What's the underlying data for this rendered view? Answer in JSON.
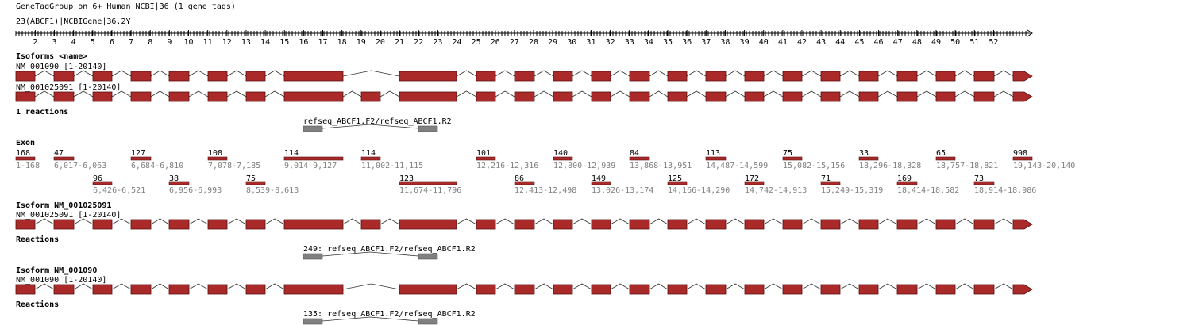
{
  "header": {
    "title_link": "Gene",
    "title_rest": "TagGroup on 6+ Human|NCBI|36 (1 gene tags)",
    "subtitle_link": "23(ABCF1)",
    "subtitle_rest": "|NCBIGene|36.2",
    "subtitle_mark": "Y"
  },
  "ruler": {
    "tick_labels": [
      "2",
      "3",
      "4",
      "5",
      "6",
      "7",
      "8",
      "9",
      "10",
      "11",
      "12",
      "13",
      "14",
      "15",
      "16",
      "17",
      "18",
      "19",
      "20",
      "21",
      "22",
      "23",
      "24",
      "25",
      "26",
      "27",
      "28",
      "29",
      "30",
      "31",
      "32",
      "33",
      "34",
      "35",
      "36",
      "37",
      "38",
      "39",
      "40",
      "41",
      "42",
      "43",
      "44",
      "45",
      "46",
      "47",
      "48",
      "49",
      "50",
      "51",
      "52"
    ]
  },
  "sections": {
    "isoforms_heading": "Isoforms <name>",
    "reactions_count": "1 reactions",
    "exon_heading": "Exon",
    "isoform_a_heading": "Isoform NM_001025091",
    "isoform_b_heading": "Isoform NM_001090",
    "reactions_a_heading": "Reactions",
    "reactions_b_heading": "Reactions"
  },
  "tracks": {
    "top_1_label": "NM_001090 [1-20140]",
    "top_2_label": "NM_001025091 [1-20140]",
    "iso_a_label": "NM_001025091 [1-20140]",
    "iso_b_label": "NM_001090 [1-20140]"
  },
  "reactions": {
    "summary": "refseq_ABCF1.F2/refseq_ABCF1.R2",
    "iso_a": "249: refseq_ABCF1.F2/refseq_ABCF1.R2",
    "iso_b": "135: refseq_ABCF1.F2/refseq_ABCF1.R2"
  },
  "exons_upper": [
    {
      "length": "168",
      "range": "1-168"
    },
    {
      "length": "47",
      "range": "6,017-6,063"
    },
    {
      "length": "127",
      "range": "6,684-6,810"
    },
    {
      "length": "108",
      "range": "7,078-7,185"
    },
    {
      "length": "114",
      "range": "9,014-9,127"
    },
    {
      "length": "114",
      "range": "11,002-11,115"
    },
    {
      "length": "101",
      "range": "12,216-12,316"
    },
    {
      "length": "140",
      "range": "12,800-12,939"
    },
    {
      "length": "84",
      "range": "13,868-13,951"
    },
    {
      "length": "113",
      "range": "14,487-14,599"
    },
    {
      "length": "75",
      "range": "15,082-15,156"
    },
    {
      "length": "33",
      "range": "18,296-18,328"
    },
    {
      "length": "65",
      "range": "18,757-18,821"
    },
    {
      "length": "998",
      "range": "19,143-20,140"
    }
  ],
  "exons_lower": [
    {
      "length": "96",
      "range": "6,426-6,521"
    },
    {
      "length": "38",
      "range": "6,956-6,993"
    },
    {
      "length": "75",
      "range": "8,539-8,613"
    },
    {
      "length": "123",
      "range": "11,674-11,796"
    },
    {
      "length": "86",
      "range": "12,413-12,498"
    },
    {
      "length": "149",
      "range": "13,026-13,174"
    },
    {
      "length": "125",
      "range": "14,166-14,290"
    },
    {
      "length": "172",
      "range": "14,742-14,913"
    },
    {
      "length": "71",
      "range": "15,249-15,319"
    },
    {
      "length": "169",
      "range": "18,414-18,582"
    },
    {
      "length": "73",
      "range": "18,914-18,986"
    }
  ],
  "colors": {
    "exon_fill": "#aa2a2a",
    "exon_stroke": "#5a1010",
    "primer_fill": "#808080",
    "axis": "#000000",
    "grey_text": "#808080"
  }
}
